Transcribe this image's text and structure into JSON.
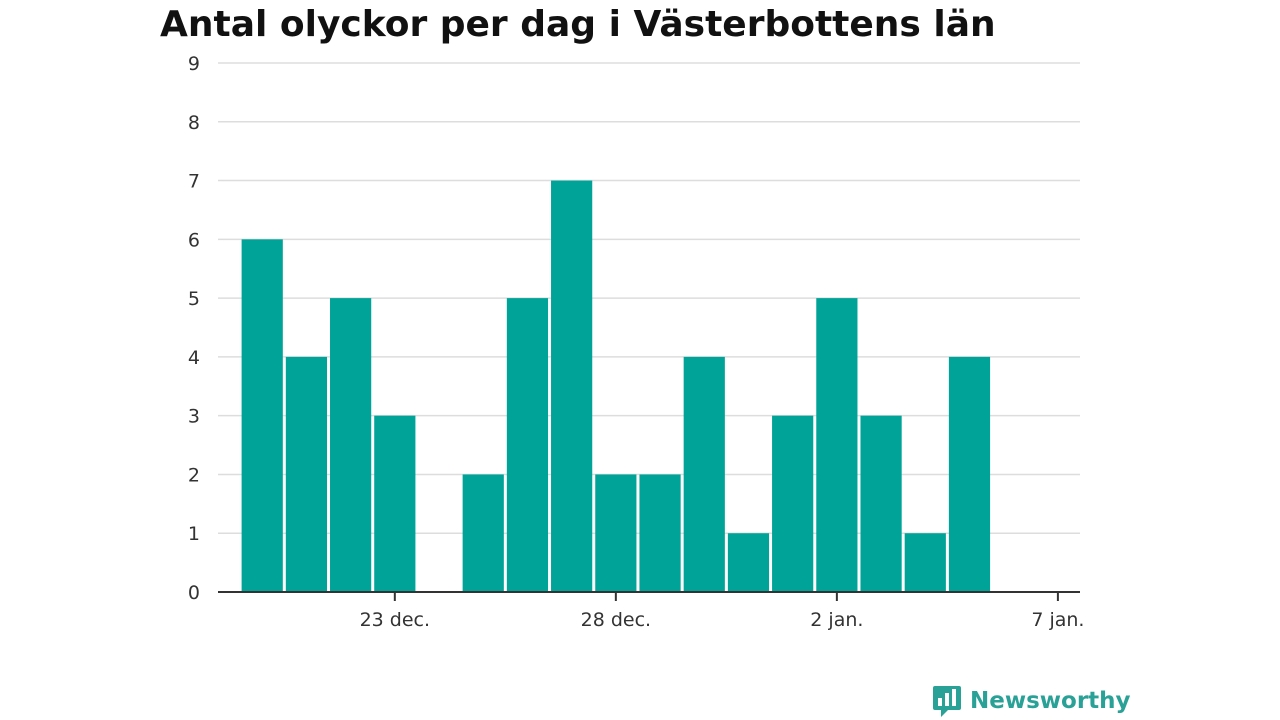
{
  "chart_data": {
    "type": "bar",
    "title": "Antal olyckor per dag i Västerbottens län",
    "x": [
      "2023-12-20",
      "2023-12-21",
      "2023-12-22",
      "2023-12-23",
      "2023-12-24",
      "2023-12-25",
      "2023-12-26",
      "2023-12-27",
      "2023-12-28",
      "2023-12-29",
      "2023-12-30",
      "2023-12-31",
      "2024-01-01",
      "2024-01-02",
      "2024-01-03",
      "2024-01-04",
      "2024-01-05"
    ],
    "values": [
      6,
      4,
      5,
      3,
      0,
      2,
      5,
      7,
      2,
      2,
      4,
      1,
      3,
      5,
      3,
      1,
      4
    ],
    "xlim": [
      "2023-12-19",
      "2024-01-07"
    ],
    "ylim": [
      0,
      9
    ],
    "yticks": [
      "0",
      "1",
      "2",
      "3",
      "4",
      "5",
      "6",
      "7",
      "8",
      "9"
    ],
    "xticks": [
      {
        "date": "2023-12-23",
        "label": "23 dec."
      },
      {
        "date": "2023-12-28",
        "label": "28 dec."
      },
      {
        "date": "2024-01-02",
        "label": "2 jan."
      },
      {
        "date": "2024-01-07",
        "label": "7 jan."
      }
    ],
    "xlabel": "",
    "ylabel": "",
    "grid": true,
    "bar_color": "#00a398"
  },
  "brand": {
    "name": "Newsworthy",
    "logo_icon": "bar-chart-speech-bubble-icon",
    "color": "#2aa197"
  }
}
